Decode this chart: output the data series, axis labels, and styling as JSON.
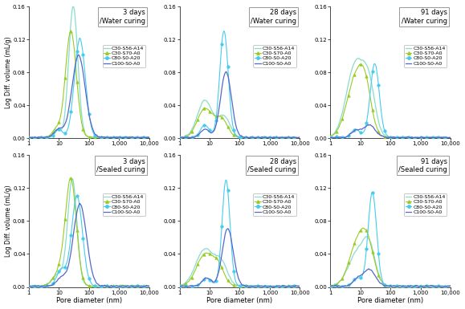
{
  "titles": [
    [
      "3 days",
      "/Water curing"
    ],
    [
      "28 days",
      "/Water curing"
    ],
    [
      "91 days",
      "/Water curing"
    ],
    [
      "3 days",
      "/Sealed curing"
    ],
    [
      "28 days",
      "/Sealed curing"
    ],
    [
      "91 days",
      "/Sealed curing"
    ]
  ],
  "legend_labels": [
    "C30-S56-A14",
    "C30-S70-A0",
    "C80-S0-A20",
    "C100-S0-A0"
  ],
  "line_colors": [
    "#88DDCC",
    "#99CC22",
    "#44CCEE",
    "#5566CC"
  ],
  "xlabel": "Pore diameter (nm)",
  "ylabel": "Log Diff. volume (mL/g)",
  "ylim": [
    0,
    0.16
  ],
  "yticks": [
    0.0,
    0.04,
    0.08,
    0.12,
    0.16
  ],
  "xticks": [
    1,
    10,
    100,
    1000,
    10000
  ],
  "xtick_labels": [
    "1",
    "10",
    "100",
    "1,000",
    "10,000"
  ]
}
